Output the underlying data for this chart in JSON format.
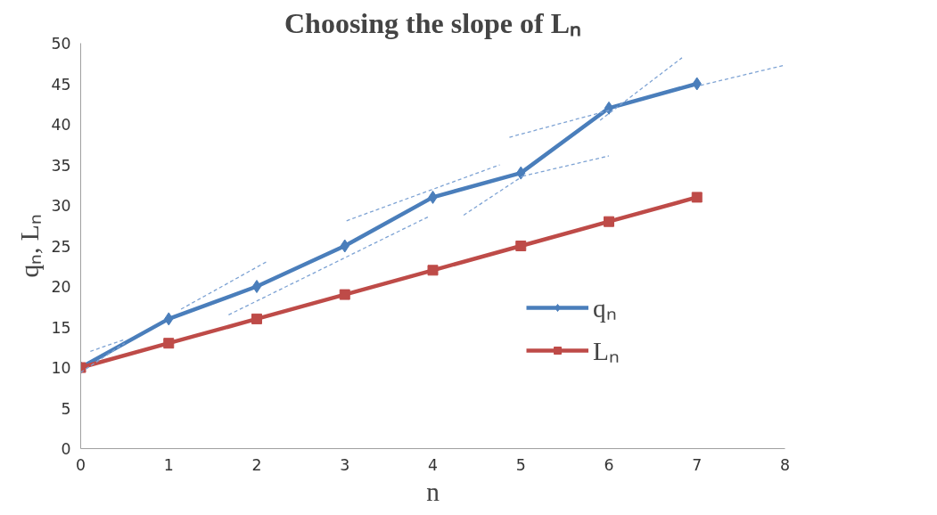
{
  "chart_data": {
    "type": "line",
    "title": "Choosing the slope of Lₙ",
    "xlabel": "n",
    "ylabel": "qₙ, Lₙ",
    "xlim": [
      0,
      8
    ],
    "xticks": [
      0,
      1,
      2,
      3,
      4,
      5,
      6,
      7,
      8
    ],
    "ylim": [
      0,
      50
    ],
    "yticks": [
      0,
      5,
      10,
      15,
      20,
      25,
      30,
      35,
      40,
      45,
      50
    ],
    "grid": false,
    "legend": "right",
    "line_style": "solid",
    "series": [
      {
        "name": "qₙ",
        "color": "#4a7ebb",
        "marker": "diamond",
        "x": [
          0,
          1,
          2,
          3,
          4,
          5,
          6,
          7
        ],
        "values": [
          10,
          16,
          20,
          25,
          31,
          34,
          42,
          45
        ]
      },
      {
        "name": "Lₙ",
        "color": "#be4b48",
        "marker": "square",
        "x": [
          0,
          1,
          2,
          3,
          4,
          5,
          6,
          7
        ],
        "values": [
          10,
          13,
          16,
          19,
          22,
          25,
          28,
          31
        ]
      },
      {
        "color": "#7ea3d4",
        "marker": "none",
        "line_style": "dashed",
        "x": [
          0,
          0.5
        ],
        "values": [
          9.4,
          13
        ]
      },
      {
        "color": "#7ea3d4",
        "marker": "none",
        "line_style": "dashed",
        "x": [
          0.11,
          0.51
        ],
        "values": [
          12,
          13.5
        ]
      },
      {
        "color": "#7ea3d4",
        "marker": "none",
        "line_style": "dashed",
        "x": [
          1.14,
          2.12
        ],
        "values": [
          17.2,
          23.1
        ]
      },
      {
        "color": "#7ea3d4",
        "marker": "none",
        "line_style": "dashed",
        "x": [
          1.68,
          3.95
        ],
        "values": [
          16.5,
          28.6
        ]
      },
      {
        "color": "#7ea3d4",
        "marker": "none",
        "line_style": "dashed",
        "x": [
          3.02,
          4.76
        ],
        "values": [
          28.1,
          35
        ]
      },
      {
        "color": "#7ea3d4",
        "marker": "none",
        "line_style": "dashed",
        "x": [
          4.35,
          5.02
        ],
        "values": [
          28.8,
          33.6
        ]
      },
      {
        "color": "#7ea3d4",
        "marker": "none",
        "line_style": "dashed",
        "x": [
          5.02,
          6.0
        ],
        "values": [
          33.6,
          36.1
        ]
      },
      {
        "color": "#7ea3d4",
        "marker": "none",
        "line_style": "dashed",
        "x": [
          4.87,
          6.03
        ],
        "values": [
          38.4,
          41.8
        ]
      },
      {
        "color": "#7ea3d4",
        "marker": "none",
        "line_style": "dashed",
        "x": [
          5.9,
          6.83
        ],
        "values": [
          40.5,
          48.2
        ]
      },
      {
        "color": "#7ea3d4",
        "marker": "none",
        "line_style": "dashed",
        "x": [
          7.04,
          8
        ],
        "values": [
          44.8,
          47.3
        ]
      }
    ]
  }
}
